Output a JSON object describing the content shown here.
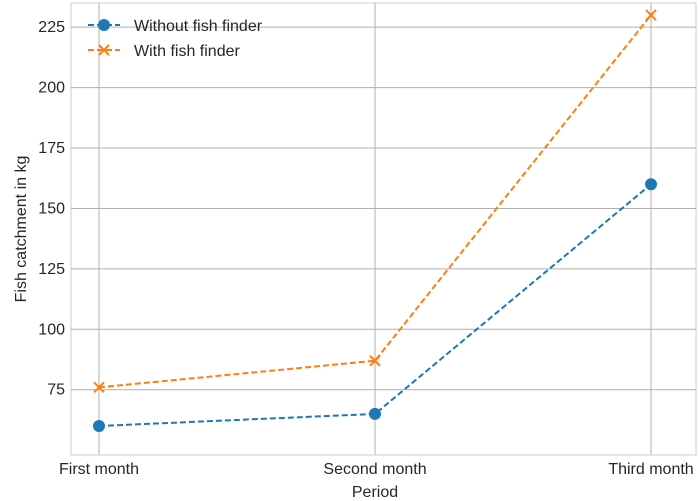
{
  "chart_data": {
    "type": "line",
    "title": "",
    "xlabel": "Period",
    "ylabel": "Fish catchment in kg",
    "categories": [
      "First month",
      "Second month",
      "Third month"
    ],
    "ylim": [
      48,
      235
    ],
    "yticks": [
      75,
      100,
      125,
      150,
      175,
      200,
      225
    ],
    "grid": true,
    "legend_position": "top-left",
    "series": [
      {
        "name": "Without fish finder",
        "values": [
          60,
          65,
          160
        ],
        "color": "#1f77b4",
        "marker": "circle",
        "linestyle": "dashed"
      },
      {
        "name": "With fish finder",
        "values": [
          76,
          87,
          230
        ],
        "color": "#ff7f0e",
        "marker": "x",
        "linestyle": "dashed"
      }
    ]
  }
}
